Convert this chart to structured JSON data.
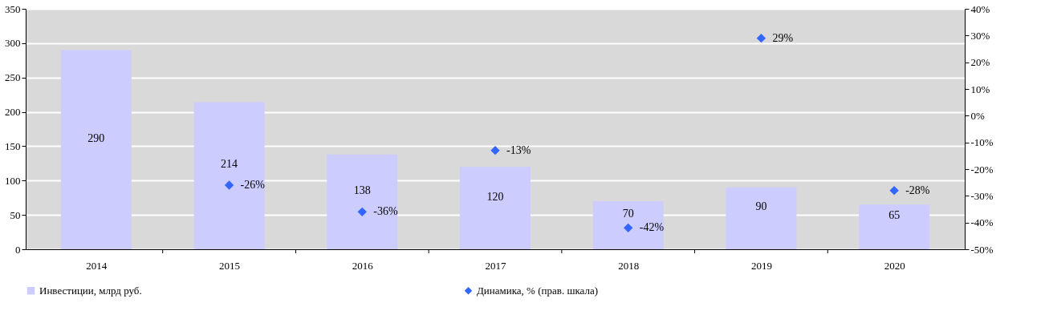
{
  "chart_data": {
    "type": "bar",
    "categories": [
      "2014",
      "2015",
      "2016",
      "2017",
      "2018",
      "2019",
      "2020"
    ],
    "series": [
      {
        "name": "Инвестиции, млрд руб.",
        "color": "#ccccff",
        "values": [
          290,
          214,
          138,
          120,
          70,
          90,
          65
        ],
        "value_labels": [
          "290",
          "214",
          "138",
          "120",
          "70",
          "90",
          "65"
        ]
      },
      {
        "name": "Динамика, % (прав. шкала)",
        "type": "scatter",
        "axis": "y2",
        "marker": "diamond",
        "color": "#3366ff",
        "values": [
          null,
          -26,
          -36,
          -13,
          -42,
          29,
          -28
        ],
        "value_labels": [
          null,
          "-26%",
          "-36%",
          "-13%",
          "-42%",
          "29%",
          "-28%"
        ]
      }
    ],
    "ylim": [
      0,
      350
    ],
    "yticks": [
      0,
      50,
      100,
      150,
      200,
      250,
      300,
      350
    ],
    "y2lim": [
      -50,
      40
    ],
    "y2ticks": [
      {
        "value": -50,
        "label": "-50%"
      },
      {
        "value": -40,
        "label": "-40%"
      },
      {
        "value": -30,
        "label": "-30%"
      },
      {
        "value": -20,
        "label": "-20%"
      },
      {
        "value": -10,
        "label": "-10%"
      },
      {
        "value": 0,
        "label": "0%"
      },
      {
        "value": 10,
        "label": "10%"
      },
      {
        "value": 20,
        "label": "20%"
      },
      {
        "value": 30,
        "label": "30%"
      },
      {
        "value": 40,
        "label": "40%"
      }
    ],
    "grid": "y",
    "legend": "bottom"
  }
}
